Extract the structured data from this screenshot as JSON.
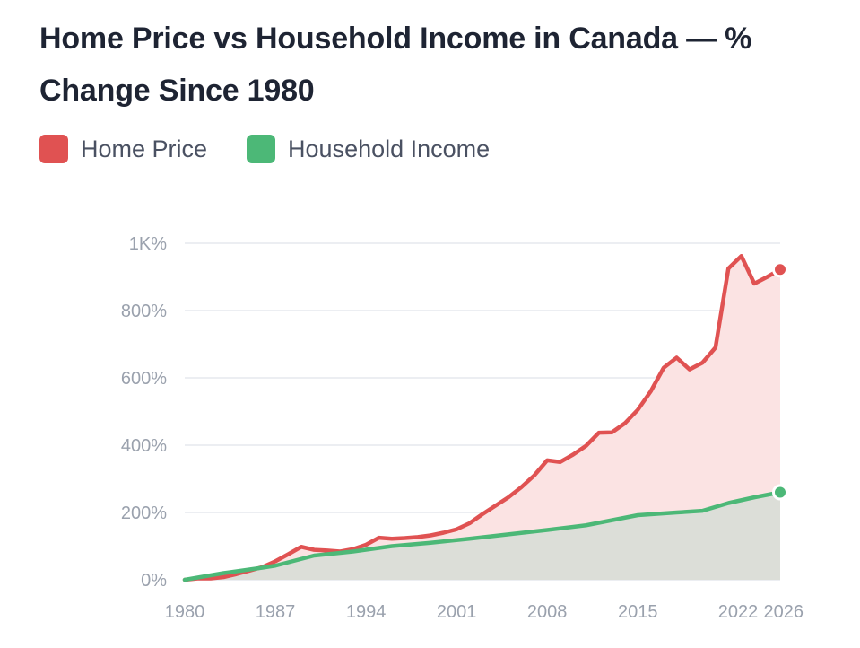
{
  "chart_data": {
    "type": "area",
    "title": "Home Price vs Household Income in Canada — % Change Since 1980",
    "xlabel": "",
    "ylabel": "",
    "xlim": [
      1980,
      2026
    ],
    "ylim": [
      0,
      1000
    ],
    "x_ticks": [
      1980,
      1987,
      1994,
      2001,
      2008,
      2015,
      2022,
      2026
    ],
    "x_tick_labels": [
      "1980",
      "1987",
      "1994",
      "2001",
      "2008",
      "2015",
      "2022",
      "2026"
    ],
    "y_ticks": [
      0,
      200,
      400,
      600,
      800,
      1000
    ],
    "y_tick_labels": [
      "0%",
      "200%",
      "400%",
      "600%",
      "800%",
      "1K%"
    ],
    "grid": true,
    "legend_position": "top-left",
    "series": [
      {
        "name": "Home Price",
        "color": "#e05252",
        "fill": "#fbe3e3",
        "x": [
          1980,
          1981,
          1982,
          1983,
          1984,
          1985,
          1986,
          1987,
          1988,
          1989,
          1990,
          1991,
          1992,
          1993,
          1994,
          1995,
          1996,
          1997,
          1998,
          1999,
          2000,
          2001,
          2002,
          2003,
          2004,
          2005,
          2006,
          2007,
          2008,
          2009,
          2010,
          2011,
          2012,
          2013,
          2014,
          2015,
          2016,
          2017,
          2018,
          2019,
          2020,
          2021,
          2022,
          2023,
          2024,
          2025,
          2026
        ],
        "y": [
          0,
          4,
          4,
          8,
          17,
          27,
          38,
          55,
          76,
          98,
          89,
          87,
          84,
          91,
          104,
          125,
          122,
          124,
          127,
          132,
          140,
          150,
          168,
          195,
          220,
          245,
          275,
          310,
          355,
          350,
          372,
          398,
          437,
          438,
          465,
          505,
          560,
          630,
          660,
          625,
          645,
          690,
          925,
          962,
          880,
          900,
          922
        ]
      },
      {
        "name": "Household Income",
        "color": "#4cb877",
        "fill": "#dcded8",
        "x": [
          1980,
          1983,
          1986,
          1987,
          1990,
          1993,
          1996,
          1999,
          2002,
          2005,
          2008,
          2011,
          2015,
          2018,
          2020,
          2022,
          2024,
          2026
        ],
        "y": [
          0,
          20,
          36,
          42,
          72,
          84,
          100,
          110,
          122,
          135,
          148,
          162,
          192,
          200,
          205,
          228,
          245,
          260
        ]
      }
    ]
  }
}
